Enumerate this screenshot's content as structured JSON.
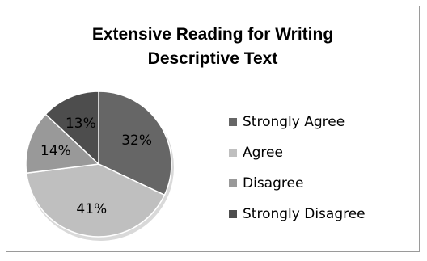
{
  "chart_data": {
    "type": "pie",
    "title": "Extensive Reading for Writing Descriptive Text",
    "title_lines": [
      "Extensive Reading for Writing",
      "Descriptive Text"
    ],
    "categories": [
      "Strongly Agree",
      "Agree",
      "Disagree",
      "Strongly Disagree"
    ],
    "values": [
      32,
      41,
      14,
      13
    ],
    "labels": [
      "32%",
      "41%",
      "14%",
      "13%"
    ],
    "colors": [
      "#666666",
      "#bfbfbf",
      "#999999",
      "#4d4d4d"
    ],
    "legend_position": "right"
  }
}
